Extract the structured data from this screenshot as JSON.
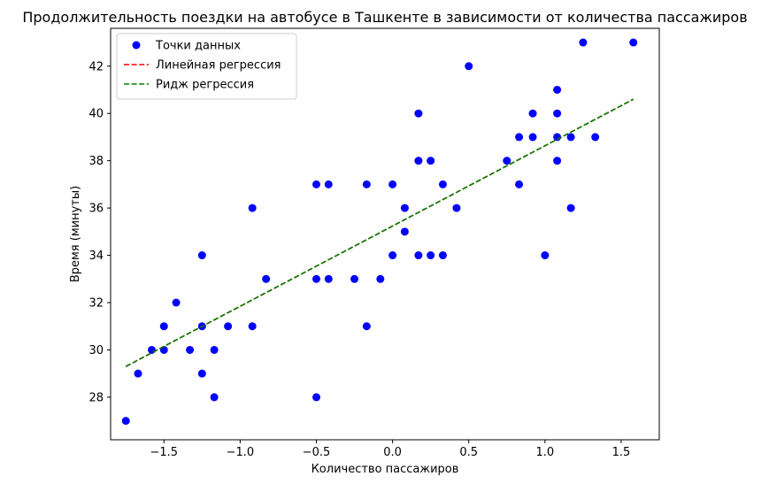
{
  "chart_data": {
    "type": "scatter",
    "title": "Продолжительность поездки на автобусе в Ташкенте в зависимости от количества пассажиров",
    "xlabel": "Количество пассажиров",
    "ylabel": "Время (минуты)",
    "xlim": [
      -1.85,
      1.75
    ],
    "ylim": [
      26.2,
      43.6
    ],
    "xticks": [
      -1.5,
      -1.0,
      -0.5,
      0.0,
      0.5,
      1.0,
      1.5
    ],
    "xtick_labels": [
      "−1.5",
      "−1.0",
      "−0.5",
      "0.0",
      "0.5",
      "1.0",
      "1.5"
    ],
    "yticks": [
      28,
      30,
      32,
      34,
      36,
      38,
      40,
      42
    ],
    "ytick_labels": [
      "28",
      "30",
      "32",
      "34",
      "36",
      "38",
      "40",
      "42"
    ],
    "grid": false,
    "legend_position": "top-left",
    "series": [
      {
        "name": "Точки данных",
        "kind": "scatter",
        "color": "#0000ff",
        "points": [
          [
            -1.75,
            27
          ],
          [
            -1.67,
            29
          ],
          [
            -1.58,
            30
          ],
          [
            -1.5,
            30
          ],
          [
            -1.5,
            31
          ],
          [
            -1.42,
            32
          ],
          [
            -1.33,
            30
          ],
          [
            -1.25,
            29
          ],
          [
            -1.25,
            31
          ],
          [
            -1.25,
            34
          ],
          [
            -1.17,
            28
          ],
          [
            -1.17,
            30
          ],
          [
            -1.08,
            31
          ],
          [
            -0.92,
            31
          ],
          [
            -0.92,
            36
          ],
          [
            -0.83,
            33
          ],
          [
            -0.5,
            33
          ],
          [
            -0.5,
            37
          ],
          [
            -0.5,
            28
          ],
          [
            -0.42,
            33
          ],
          [
            -0.42,
            37
          ],
          [
            -0.25,
            33
          ],
          [
            -0.17,
            31
          ],
          [
            -0.17,
            37
          ],
          [
            -0.08,
            33
          ],
          [
            0.0,
            34
          ],
          [
            0.0,
            37
          ],
          [
            0.08,
            35
          ],
          [
            0.08,
            36
          ],
          [
            0.17,
            34
          ],
          [
            0.17,
            38
          ],
          [
            0.17,
            40
          ],
          [
            0.25,
            38
          ],
          [
            0.25,
            34
          ],
          [
            0.33,
            34
          ],
          [
            0.33,
            37
          ],
          [
            0.42,
            36
          ],
          [
            0.5,
            42
          ],
          [
            0.75,
            38
          ],
          [
            0.83,
            37
          ],
          [
            0.83,
            39
          ],
          [
            0.92,
            39
          ],
          [
            0.92,
            40
          ],
          [
            1.0,
            34
          ],
          [
            1.08,
            38
          ],
          [
            1.08,
            39
          ],
          [
            1.08,
            40
          ],
          [
            1.08,
            41
          ],
          [
            1.17,
            36
          ],
          [
            1.17,
            39
          ],
          [
            1.25,
            43
          ],
          [
            1.33,
            39
          ],
          [
            1.58,
            43
          ]
        ]
      },
      {
        "name": "Линейная регрессия",
        "kind": "line",
        "color": "#ff0000",
        "dash": "dashed",
        "points": [
          [
            -1.75,
            29.3
          ],
          [
            1.58,
            40.6
          ]
        ]
      },
      {
        "name": "Ридж регрессия",
        "kind": "line",
        "color": "#008000",
        "dash": "dashed",
        "points": [
          [
            -1.75,
            29.3
          ],
          [
            1.58,
            40.6
          ]
        ]
      }
    ]
  }
}
